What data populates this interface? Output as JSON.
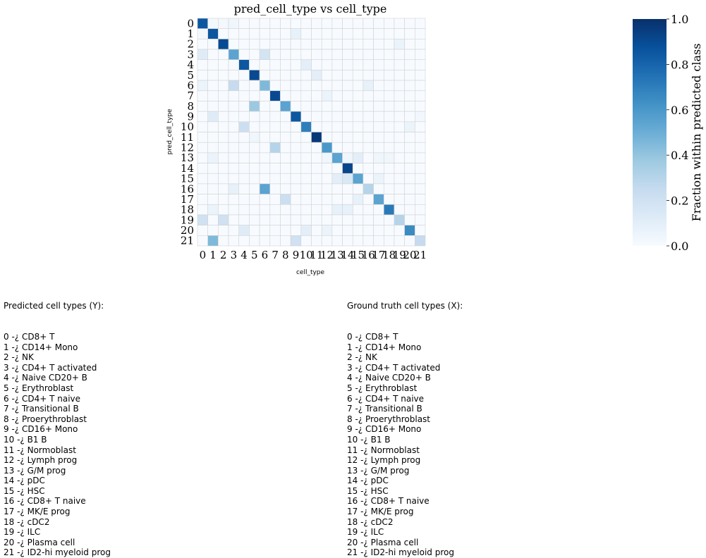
{
  "chart_data": {
    "type": "heatmap",
    "title": "pred_cell_type vs cell_type",
    "xlabel": "cell_type",
    "ylabel": "pred_cell_type",
    "x_categories": [
      "0",
      "1",
      "2",
      "3",
      "4",
      "5",
      "6",
      "7",
      "8",
      "9",
      "10",
      "11",
      "12",
      "13",
      "14",
      "15",
      "16",
      "17",
      "18",
      "19",
      "20",
      "21"
    ],
    "y_categories": [
      "0",
      "1",
      "2",
      "3",
      "4",
      "5",
      "6",
      "7",
      "8",
      "9",
      "10",
      "11",
      "12",
      "13",
      "14",
      "15",
      "16",
      "17",
      "18",
      "19",
      "20",
      "21"
    ],
    "colormap": "Blues",
    "color_low": "#f7fbff",
    "color_high": "#08306b",
    "grid_color": "#d3d3d3",
    "colorbar": {
      "label": "Fraction within predicted class",
      "range": [
        0,
        1
      ],
      "ticks": [
        "0.0",
        "0.2",
        "0.4",
        "0.6",
        "0.8",
        "1.0"
      ]
    },
    "values": [
      [
        0.85,
        0.02,
        0.02,
        0.04,
        0.0,
        0.0,
        0.0,
        0.0,
        0.0,
        0.0,
        0.0,
        0.0,
        0.0,
        0.0,
        0.0,
        0.0,
        0.0,
        0.0,
        0.0,
        0.0,
        0.0,
        0.0
      ],
      [
        0.02,
        0.85,
        0.0,
        0.0,
        0.0,
        0.0,
        0.0,
        0.0,
        0.0,
        0.08,
        0.0,
        0.0,
        0.0,
        0.0,
        0.0,
        0.0,
        0.0,
        0.0,
        0.0,
        0.0,
        0.0,
        0.0
      ],
      [
        0.0,
        0.0,
        0.9,
        0.0,
        0.0,
        0.0,
        0.0,
        0.0,
        0.0,
        0.0,
        0.0,
        0.0,
        0.0,
        0.0,
        0.0,
        0.0,
        0.0,
        0.0,
        0.0,
        0.06,
        0.0,
        0.0
      ],
      [
        0.12,
        0.0,
        0.0,
        0.55,
        0.0,
        0.0,
        0.18,
        0.0,
        0.0,
        0.0,
        0.0,
        0.0,
        0.0,
        0.0,
        0.0,
        0.0,
        0.0,
        0.0,
        0.0,
        0.0,
        0.0,
        0.0
      ],
      [
        0.0,
        0.0,
        0.0,
        0.0,
        0.85,
        0.0,
        0.0,
        0.0,
        0.0,
        0.0,
        0.1,
        0.0,
        0.0,
        0.0,
        0.0,
        0.0,
        0.0,
        0.0,
        0.0,
        0.0,
        0.0,
        0.0
      ],
      [
        0.0,
        0.0,
        0.0,
        0.0,
        0.0,
        0.9,
        0.0,
        0.0,
        0.0,
        0.0,
        0.0,
        0.1,
        0.0,
        0.0,
        0.0,
        0.0,
        0.0,
        0.0,
        0.0,
        0.0,
        0.0,
        0.0
      ],
      [
        0.06,
        0.0,
        0.0,
        0.25,
        0.0,
        0.0,
        0.45,
        0.0,
        0.0,
        0.0,
        0.0,
        0.0,
        0.0,
        0.0,
        0.0,
        0.0,
        0.08,
        0.0,
        0.0,
        0.0,
        0.0,
        0.0
      ],
      [
        0.0,
        0.0,
        0.0,
        0.0,
        0.0,
        0.0,
        0.0,
        0.9,
        0.0,
        0.0,
        0.0,
        0.0,
        0.06,
        0.0,
        0.0,
        0.0,
        0.0,
        0.0,
        0.0,
        0.0,
        0.0,
        0.0
      ],
      [
        0.0,
        0.0,
        0.0,
        0.0,
        0.0,
        0.38,
        0.0,
        0.0,
        0.55,
        0.0,
        0.0,
        0.0,
        0.0,
        0.0,
        0.0,
        0.0,
        0.0,
        0.0,
        0.0,
        0.0,
        0.0,
        0.0
      ],
      [
        0.0,
        0.12,
        0.0,
        0.0,
        0.0,
        0.0,
        0.0,
        0.0,
        0.0,
        0.85,
        0.0,
        0.0,
        0.0,
        0.0,
        0.0,
        0.0,
        0.0,
        0.0,
        0.0,
        0.0,
        0.0,
        0.03
      ],
      [
        0.0,
        0.0,
        0.0,
        0.0,
        0.22,
        0.0,
        0.0,
        0.0,
        0.0,
        0.0,
        0.7,
        0.0,
        0.0,
        0.0,
        0.0,
        0.0,
        0.0,
        0.0,
        0.0,
        0.0,
        0.06,
        0.0
      ],
      [
        0.0,
        0.0,
        0.0,
        0.0,
        0.0,
        0.04,
        0.0,
        0.0,
        0.0,
        0.0,
        0.0,
        0.97,
        0.0,
        0.0,
        0.0,
        0.0,
        0.0,
        0.0,
        0.0,
        0.0,
        0.0,
        0.0
      ],
      [
        0.0,
        0.0,
        0.0,
        0.0,
        0.0,
        0.0,
        0.0,
        0.3,
        0.0,
        0.0,
        0.0,
        0.0,
        0.6,
        0.0,
        0.0,
        0.0,
        0.0,
        0.0,
        0.0,
        0.0,
        0.0,
        0.0
      ],
      [
        0.0,
        0.06,
        0.0,
        0.0,
        0.0,
        0.0,
        0.0,
        0.0,
        0.0,
        0.0,
        0.0,
        0.0,
        0.04,
        0.55,
        0.04,
        0.1,
        0.0,
        0.04,
        0.04,
        0.0,
        0.0,
        0.0
      ],
      [
        0.0,
        0.0,
        0.0,
        0.0,
        0.0,
        0.0,
        0.0,
        0.0,
        0.0,
        0.0,
        0.0,
        0.0,
        0.0,
        0.0,
        0.92,
        0.0,
        0.0,
        0.0,
        0.0,
        0.0,
        0.0,
        0.0
      ],
      [
        0.0,
        0.0,
        0.0,
        0.0,
        0.0,
        0.0,
        0.0,
        0.0,
        0.0,
        0.0,
        0.0,
        0.0,
        0.0,
        0.1,
        0.15,
        0.55,
        0.0,
        0.06,
        0.0,
        0.0,
        0.0,
        0.0
      ],
      [
        0.0,
        0.0,
        0.0,
        0.08,
        0.0,
        0.0,
        0.55,
        0.0,
        0.0,
        0.0,
        0.0,
        0.0,
        0.0,
        0.0,
        0.0,
        0.0,
        0.3,
        0.0,
        0.0,
        0.0,
        0.0,
        0.0
      ],
      [
        0.0,
        0.0,
        0.0,
        0.0,
        0.0,
        0.0,
        0.0,
        0.0,
        0.22,
        0.0,
        0.0,
        0.0,
        0.0,
        0.0,
        0.0,
        0.08,
        0.0,
        0.55,
        0.0,
        0.0,
        0.0,
        0.0
      ],
      [
        0.0,
        0.06,
        0.0,
        0.0,
        0.0,
        0.0,
        0.0,
        0.0,
        0.0,
        0.0,
        0.0,
        0.0,
        0.0,
        0.08,
        0.08,
        0.0,
        0.0,
        0.0,
        0.72,
        0.0,
        0.0,
        0.0
      ],
      [
        0.2,
        0.0,
        0.2,
        0.0,
        0.0,
        0.0,
        0.0,
        0.0,
        0.0,
        0.0,
        0.0,
        0.0,
        0.0,
        0.0,
        0.0,
        0.0,
        0.0,
        0.0,
        0.0,
        0.3,
        0.0,
        0.0
      ],
      [
        0.0,
        0.0,
        0.0,
        0.0,
        0.12,
        0.0,
        0.0,
        0.0,
        0.0,
        0.0,
        0.1,
        0.0,
        0.06,
        0.0,
        0.0,
        0.0,
        0.0,
        0.0,
        0.0,
        0.0,
        0.65,
        0.0
      ],
      [
        0.0,
        0.45,
        0.0,
        0.0,
        0.0,
        0.0,
        0.0,
        0.0,
        0.0,
        0.2,
        0.0,
        0.0,
        0.0,
        0.0,
        0.0,
        0.0,
        0.0,
        0.0,
        0.0,
        0.0,
        0.0,
        0.25
      ]
    ]
  },
  "legend_left": {
    "title": "Predicted cell types (Y):",
    "items": [
      "0 -¿ CD8+ T",
      "1 -¿ CD14+ Mono",
      "2 -¿ NK",
      "3 -¿ CD4+ T activated",
      "4 -¿ Naive CD20+ B",
      "5 -¿ Erythroblast",
      "6 -¿ CD4+ T naive",
      "7 -¿ Transitional B",
      "8 -¿ Proerythroblast",
      "9 -¿ CD16+ Mono",
      "10 -¿ B1 B",
      "11 -¿ Normoblast",
      "12 -¿ Lymph prog",
      "13 -¿ G/M prog",
      "14 -¿ pDC",
      "15 -¿ HSC",
      "16 -¿ CD8+ T naive",
      "17 -¿ MK/E prog",
      "18 -¿ cDC2",
      "19 -¿ ILC",
      "20 -¿ Plasma cell",
      "21 -¿ ID2-hi myeloid prog"
    ]
  },
  "legend_right": {
    "title": "Ground truth cell types (X):",
    "items": [
      "0 -¿ CD8+ T",
      "1 -¿ CD14+ Mono",
      "2 -¿ NK",
      "3 -¿ CD4+ T activated",
      "4 -¿ Naive CD20+ B",
      "5 -¿ Erythroblast",
      "6 -¿ CD4+ T naive",
      "7 -¿ Transitional B",
      "8 -¿ Proerythroblast",
      "9 -¿ CD16+ Mono",
      "10 -¿ B1 B",
      "11 -¿ Normoblast",
      "12 -¿ Lymph prog",
      "13 -¿ G/M prog",
      "14 -¿ pDC",
      "15 -¿ HSC",
      "16 -¿ CD8+ T naive",
      "17 -¿ MK/E prog",
      "18 -¿ cDC2",
      "19 -¿ ILC",
      "20 -¿ Plasma cell",
      "21 -¿ ID2-hi myeloid prog"
    ]
  }
}
